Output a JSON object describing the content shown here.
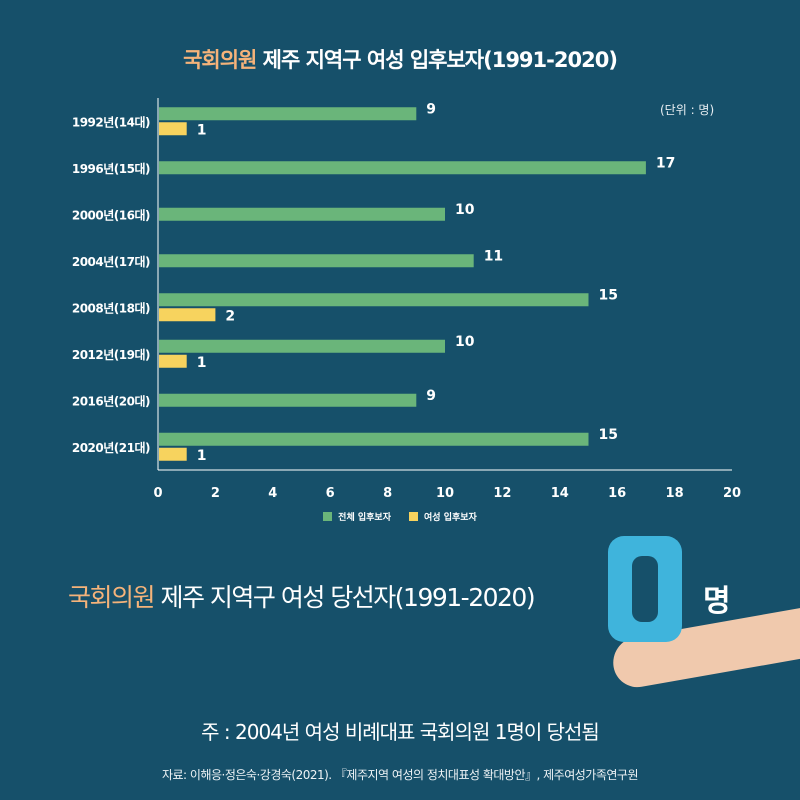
{
  "header": {
    "title_accent": "국회의원",
    "title_rest": " 제주 지역구 여성 입후보자(1991-2020)",
    "unit": "(단위 : 명)"
  },
  "colors": {
    "background": "#16506a",
    "total_bar": "#6ab57a",
    "women_bar": "#f7d35e",
    "accent": "#f5b37a"
  },
  "chart_data": {
    "type": "bar",
    "orientation": "horizontal",
    "categories": [
      "1992년(14대)",
      "1996년(15대)",
      "2000년(16대)",
      "2004년(17대)",
      "2008년(18대)",
      "2012년(19대)",
      "2016년(20대)",
      "2020년(21대)"
    ],
    "series": [
      {
        "name": "전체 입후보자",
        "values": [
          9,
          17,
          10,
          11,
          15,
          10,
          9,
          15
        ]
      },
      {
        "name": "여성 입후보자",
        "values": [
          1,
          null,
          null,
          null,
          2,
          1,
          null,
          1
        ]
      }
    ],
    "xlim": [
      0,
      20
    ],
    "xticks": [
      0,
      2,
      4,
      6,
      8,
      10,
      12,
      14,
      16,
      18,
      20
    ],
    "grid": false,
    "legend": "bottom"
  },
  "result": {
    "title_accent": "국회의원",
    "title_rest": " 제주 지역구 여성 당선자(1991-2020)",
    "value": "0",
    "unit": "명"
  },
  "note": "주 : 2004년 여성 비례대표 국회의원 1명이 당선됨",
  "source": "자료: 이해응·정은숙·강경숙(2021). 『제주지역 여성의 정치대표성 확대방안』, 제주여성가족연구원"
}
